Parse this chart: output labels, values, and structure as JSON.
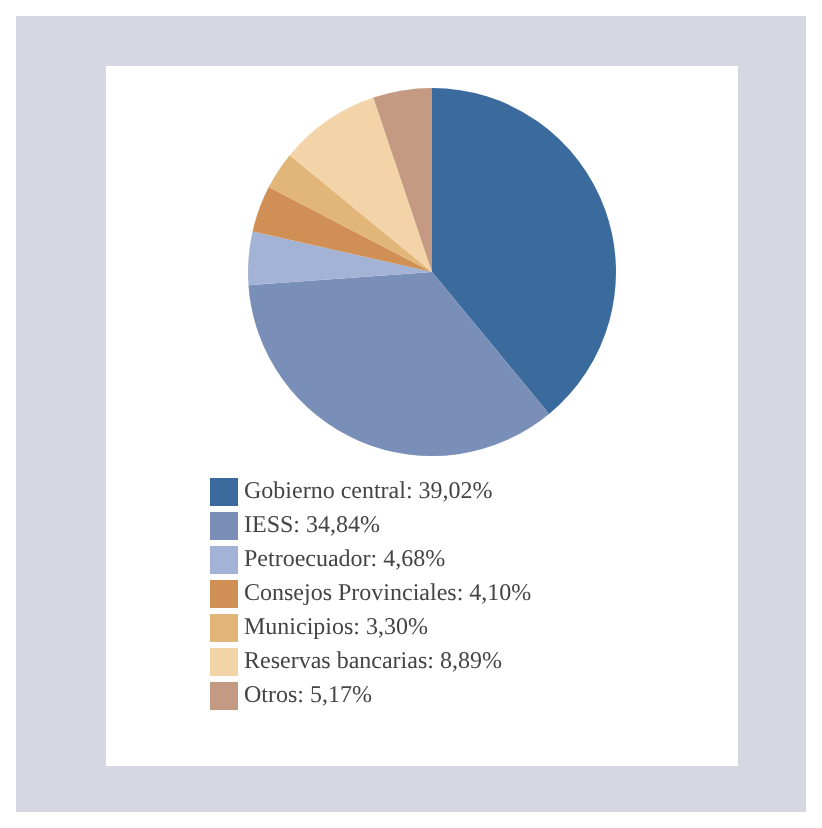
{
  "chart_data": {
    "type": "pie",
    "categories": [
      "Gobierno central: 39,02%",
      "IESS: 34,84%",
      "Petroecuador: 4,68%",
      "Consejos Provinciales: 4,10%",
      "Municipios: 3,30%",
      "Reservas bancarias: 8,89%",
      "Otros: 5,17%"
    ],
    "values": [
      39.02,
      34.84,
      4.68,
      4.1,
      3.3,
      8.89,
      5.17
    ],
    "colors": [
      "#3a6b9c",
      "#7a8fb8",
      "#a3b3d6",
      "#cf8f55",
      "#e2b678",
      "#f3d3a8",
      "#c59a82"
    ],
    "legend": "bottom"
  }
}
